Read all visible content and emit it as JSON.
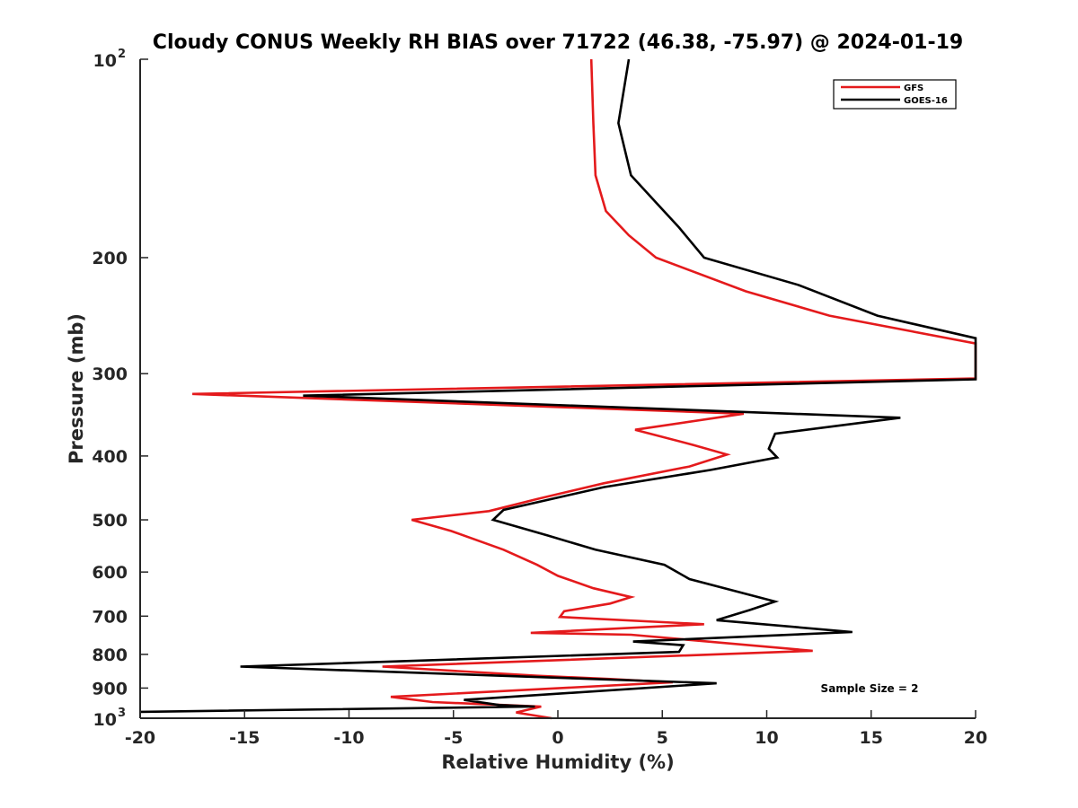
{
  "chart_data": {
    "type": "line",
    "title": "Cloudy CONUS Weekly RH BIAS over 71722 (46.38, -75.97) @ 2024-01-19",
    "xlabel": "Relative Humidity (%)",
    "ylabel": "Pressure (mb)",
    "xlim": [
      -20,
      20
    ],
    "ylim": [
      100,
      1000
    ],
    "y_scale": "log",
    "y_reversed": true,
    "x_ticks": [
      -20,
      -15,
      -10,
      -5,
      0,
      5,
      10,
      15,
      20
    ],
    "x_tick_labels": [
      "-20",
      "-15",
      "-10",
      "-5",
      "0",
      "5",
      "10",
      "15",
      "20"
    ],
    "y_ticks": [
      100,
      200,
      300,
      400,
      500,
      600,
      700,
      800,
      900,
      1000
    ],
    "y_tick_labels": [
      {
        "base": "10",
        "sup": "2"
      },
      {
        "base": "200",
        "sup": ""
      },
      {
        "base": "300",
        "sup": ""
      },
      {
        "base": "400",
        "sup": ""
      },
      {
        "base": "500",
        "sup": ""
      },
      {
        "base": "600",
        "sup": ""
      },
      {
        "base": "700",
        "sup": ""
      },
      {
        "base": "800",
        "sup": ""
      },
      {
        "base": "900",
        "sup": ""
      },
      {
        "base": "10",
        "sup": "3"
      }
    ],
    "legend": {
      "location": "top-right",
      "entries": [
        "GFS",
        "GOES-16"
      ]
    },
    "annotation": "Sample Size = 2",
    "grid": false,
    "series": [
      {
        "name": "GFS",
        "color": "#e41a1c",
        "points": [
          [
            1.6,
            100
          ],
          [
            1.7,
            125
          ],
          [
            1.8,
            150
          ],
          [
            2.3,
            170
          ],
          [
            3.4,
            185
          ],
          [
            4.7,
            200
          ],
          [
            9.0,
            225
          ],
          [
            13.0,
            245
          ],
          [
            20.0,
            270
          ],
          [
            20.0,
            305
          ],
          [
            -17.5,
            322
          ],
          [
            8.9,
            345
          ],
          [
            3.7,
            365
          ],
          [
            6.5,
            385
          ],
          [
            8.1,
            398
          ],
          [
            6.3,
            415
          ],
          [
            2.2,
            440
          ],
          [
            -1.0,
            465
          ],
          [
            -3.3,
            485
          ],
          [
            -7.0,
            500
          ],
          [
            -5.1,
            520
          ],
          [
            -2.6,
            555
          ],
          [
            -1.0,
            585
          ],
          [
            0.0,
            608
          ],
          [
            1.7,
            635
          ],
          [
            3.5,
            655
          ],
          [
            2.5,
            670
          ],
          [
            0.3,
            688
          ],
          [
            0.1,
            702
          ],
          [
            7.0,
            720
          ],
          [
            -1.3,
            742
          ],
          [
            3.5,
            747
          ],
          [
            12.2,
            790
          ],
          [
            -8.4,
            835
          ],
          [
            -1.0,
            862
          ],
          [
            2.5,
            872
          ],
          [
            5.5,
            882
          ],
          [
            -8.0,
            928
          ],
          [
            -6.0,
            945
          ],
          [
            -0.8,
            960
          ],
          [
            -2.0,
            980
          ],
          [
            -0.3,
            1000
          ]
        ]
      },
      {
        "name": "GOES-16",
        "color": "#000000",
        "points": [
          [
            3.4,
            100
          ],
          [
            2.9,
            125
          ],
          [
            3.5,
            150
          ],
          [
            4.7,
            165
          ],
          [
            5.8,
            180
          ],
          [
            7.0,
            200
          ],
          [
            11.5,
            220
          ],
          [
            15.3,
            245
          ],
          [
            20.0,
            265
          ],
          [
            20.0,
            306
          ],
          [
            -12.2,
            324
          ],
          [
            16.4,
            350
          ],
          [
            10.4,
            370
          ],
          [
            10.1,
            390
          ],
          [
            10.5,
            402
          ],
          [
            7.3,
            420
          ],
          [
            2.2,
            446
          ],
          [
            -2.6,
            483
          ],
          [
            -3.1,
            500
          ],
          [
            -0.5,
            528
          ],
          [
            1.8,
            555
          ],
          [
            5.1,
            585
          ],
          [
            6.3,
            615
          ],
          [
            10.4,
            665
          ],
          [
            9.2,
            685
          ],
          [
            7.6,
            710
          ],
          [
            14.1,
            740
          ],
          [
            3.6,
            765
          ],
          [
            6.0,
            775
          ],
          [
            5.8,
            793
          ],
          [
            -15.2,
            835
          ],
          [
            7.6,
            885
          ],
          [
            -4.5,
            938
          ],
          [
            -2.8,
            955
          ],
          [
            -1.1,
            960
          ],
          [
            -20.0,
            978
          ]
        ]
      }
    ]
  }
}
